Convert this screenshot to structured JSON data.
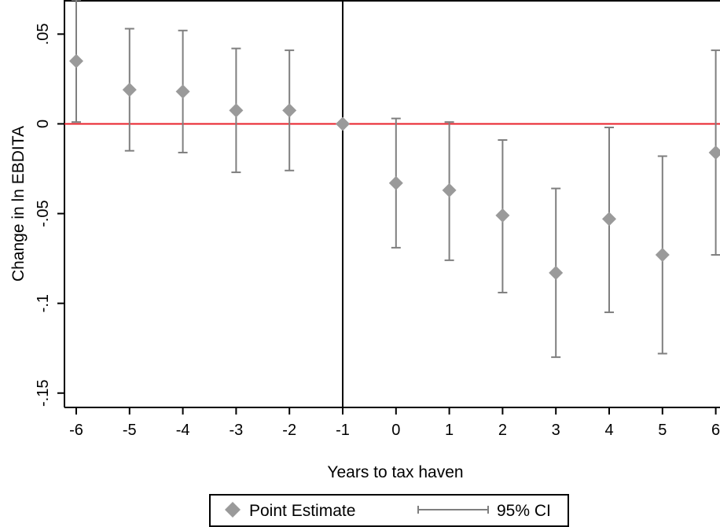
{
  "chart_data": {
    "type": "scatter",
    "title": "",
    "xlabel": "Years to tax haven",
    "ylabel": "Change in ln EBDITA",
    "x_ticks": [
      "-6",
      "-5",
      "-4",
      "-3",
      "-2",
      "-1",
      "0",
      "1",
      "2",
      "3",
      "4",
      "5",
      "6"
    ],
    "y_ticks": [
      {
        "value": 0.05,
        "label": ".05"
      },
      {
        "value": 0,
        "label": "0"
      },
      {
        "value": -0.05,
        "label": "-.05"
      },
      {
        "value": -0.1,
        "label": "-.1"
      },
      {
        "value": -0.15,
        "label": "-.15"
      }
    ],
    "xlim": [
      -6,
      6
    ],
    "ylim": [
      -0.158,
      0.069
    ],
    "grid": false,
    "reference_lines": {
      "horizontal_zero": {
        "value": 0,
        "color": "#e8202a"
      },
      "vertical_event": {
        "value": -1,
        "color": "#000000"
      }
    },
    "series": [
      {
        "name": "Point Estimate",
        "marker": "diamond",
        "color": "#9a9a9a",
        "x": [
          -6,
          -5,
          -4,
          -3,
          -2,
          -1,
          0,
          1,
          2,
          3,
          4,
          5,
          6
        ],
        "values": [
          0.035,
          0.019,
          0.018,
          0.0075,
          0.0075,
          0,
          -0.033,
          -0.037,
          -0.051,
          -0.083,
          -0.053,
          -0.073,
          -0.016
        ]
      },
      {
        "name": "95% CI",
        "type": "errorbar",
        "color": "#7f7f7f",
        "x": [
          -6,
          -5,
          -4,
          -3,
          -2,
          -1,
          0,
          1,
          2,
          3,
          4,
          5,
          6
        ],
        "lower": [
          0.001,
          -0.015,
          -0.016,
          -0.027,
          -0.026,
          0,
          -0.069,
          -0.076,
          -0.094,
          -0.13,
          -0.105,
          -0.128,
          -0.073
        ],
        "upper": [
          0.069,
          0.053,
          0.052,
          0.042,
          0.041,
          0,
          0.003,
          0.001,
          -0.009,
          -0.036,
          -0.002,
          -0.018,
          0.041
        ]
      }
    ],
    "legend": {
      "placement": "bottom",
      "items": [
        "Point Estimate",
        "95% CI"
      ]
    }
  }
}
